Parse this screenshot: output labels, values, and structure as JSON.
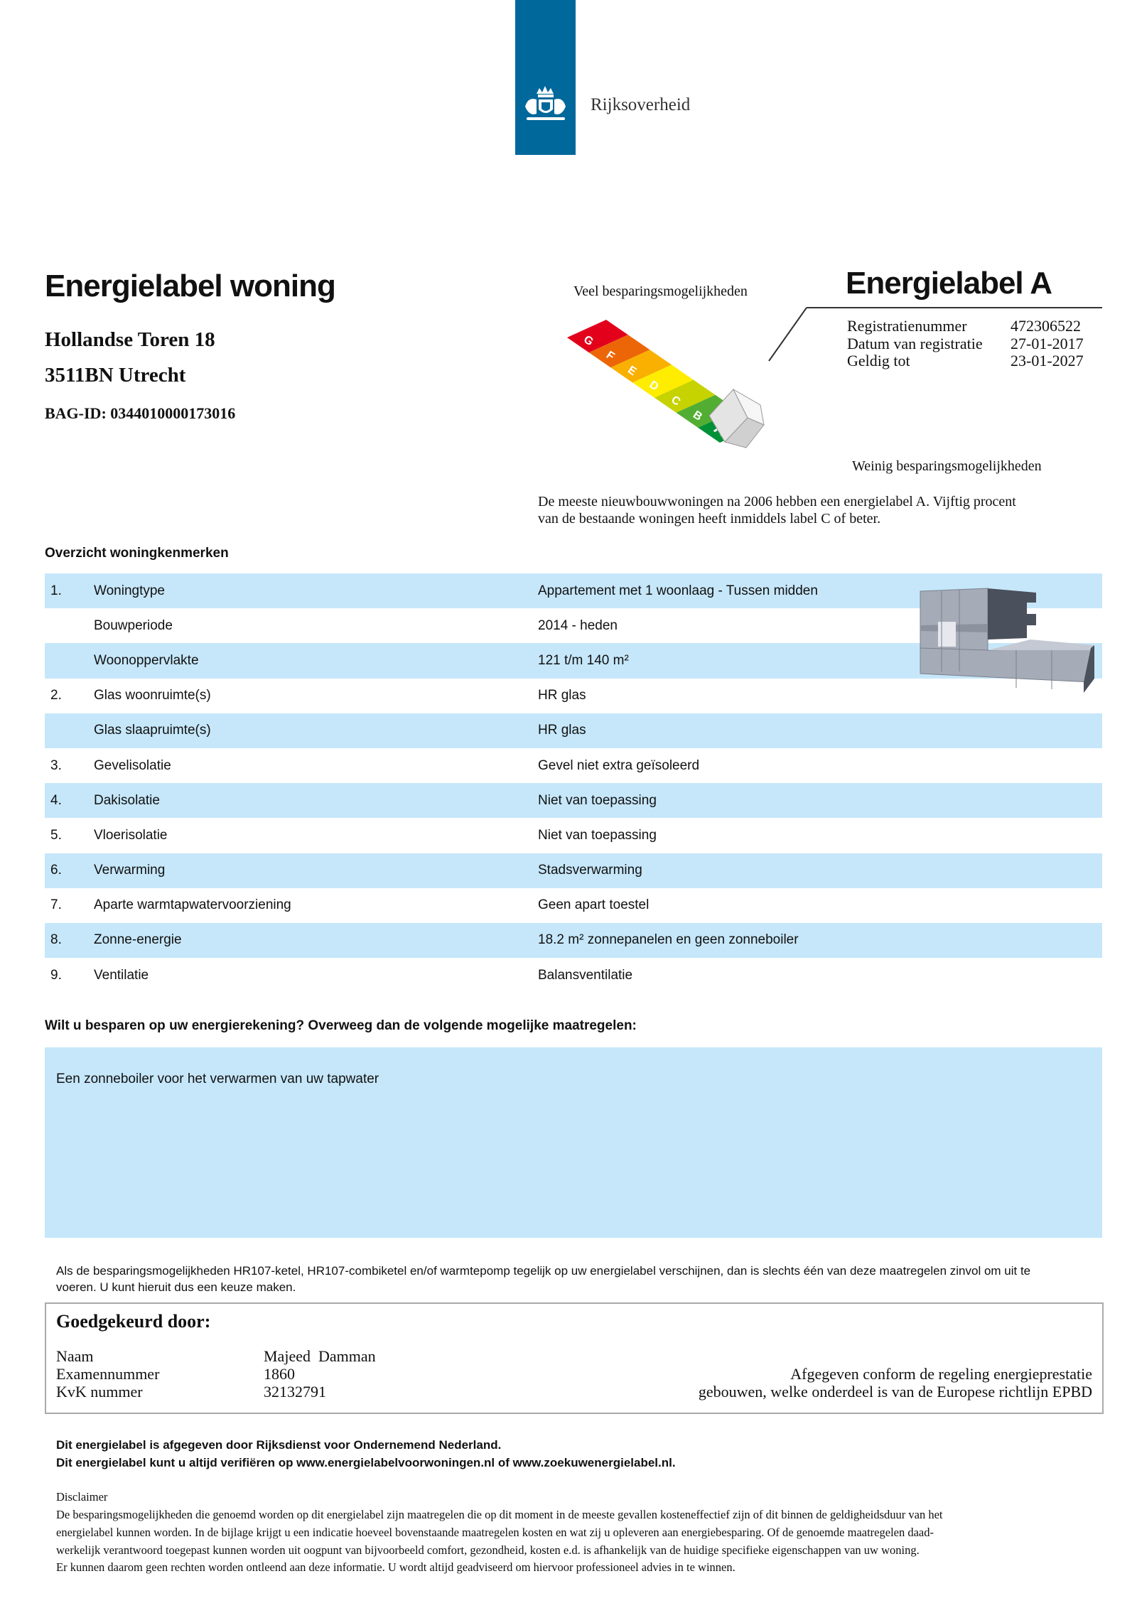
{
  "header": {
    "brand": "Rijksoverheid",
    "brand_color": "#01689b"
  },
  "left": {
    "title": "Energielabel woning",
    "street": "Hollandse Toren 18",
    "city": "3511BN Utrecht",
    "bag_id": "BAG-ID: 0344010000173016"
  },
  "label": {
    "top_caption": "Veel besparingsmogelijkheden",
    "bottom_caption": "Weinig besparingsmogelijkheden",
    "title": "Energielabel A",
    "current": "A",
    "classes": [
      {
        "letter": "G",
        "color": "#e3001b"
      },
      {
        "letter": "F",
        "color": "#ec6608"
      },
      {
        "letter": "E",
        "color": "#f9b000"
      },
      {
        "letter": "D",
        "color": "#ffed00"
      },
      {
        "letter": "C",
        "color": "#c6d300"
      },
      {
        "letter": "B",
        "color": "#52ae32"
      },
      {
        "letter": "A",
        "color": "#009036"
      }
    ],
    "info": [
      {
        "key": "Registratienummer",
        "value": "472306522"
      },
      {
        "key": "Datum van registratie",
        "value": "27-01-2017"
      },
      {
        "key": "Geldig tot",
        "value": "23-01-2027"
      }
    ],
    "note_line1": "De meeste nieuwbouwwoningen na 2006 hebben een energielabel A. Vijftig procent",
    "note_line2": "van de bestaande woningen heeft inmiddels label C of beter."
  },
  "overview": {
    "heading": "Overzicht woningkenmerken",
    "rows": [
      {
        "num": "1.",
        "key": "Woningtype",
        "value": "Appartement met 1 woonlaag - Tussen midden"
      },
      {
        "num": "",
        "key": "Bouwperiode",
        "value": "2014 - heden"
      },
      {
        "num": "",
        "key": "Woonoppervlakte",
        "value": "121 t/m 140 m²"
      },
      {
        "num": "2.",
        "key": "Glas woonruimte(s)",
        "value": "HR glas"
      },
      {
        "num": "",
        "key": "Glas slaapruimte(s)",
        "value": "HR glas"
      },
      {
        "num": "3.",
        "key": "Gevelisolatie",
        "value": "Gevel niet extra geïsoleerd"
      },
      {
        "num": "4.",
        "key": "Dakisolatie",
        "value": "Niet van toepassing"
      },
      {
        "num": "5.",
        "key": "Vloerisolatie",
        "value": "Niet van toepassing"
      },
      {
        "num": "6.",
        "key": "Verwarming",
        "value": "Stadsverwarming"
      },
      {
        "num": "7.",
        "key": "Aparte warmtapwatervoorziening",
        "value": "Geen apart toestel"
      },
      {
        "num": "8.",
        "key": "Zonne-energie",
        "value": "18.2 m² zonnepanelen en geen zonneboiler"
      },
      {
        "num": "9.",
        "key": "Ventilatie",
        "value": "Balansventilatie"
      }
    ],
    "row_color": "#c6e7fa"
  },
  "measures": {
    "question": "Wilt u besparen op uw energierekening? Overweeg dan de volgende mogelijke maatregelen:",
    "items": [
      "Een zonneboiler voor het verwarmen van uw tapwater"
    ],
    "note_line1": "Als de besparingsmogelijkheden HR107-ketel, HR107-combiketel en/of warmtepomp tegelijk op uw energielabel verschijnen, dan is slechts één van deze maatregelen zinvol om uit te",
    "note_line2": "voeren. U kunt hieruit dus een keuze maken."
  },
  "approved": {
    "heading": "Goedgekeurd door:",
    "fields": [
      {
        "key": "Naam",
        "value": "Majeed  Damman"
      },
      {
        "key": "Examennummer",
        "value": "1860"
      },
      {
        "key": "KvK nummer",
        "value": "32132791"
      }
    ],
    "conform_line1": "Afgegeven conform de regeling energieprestatie",
    "conform_line2": "gebouwen, welke onderdeel is van de Europese richtlijn EPBD"
  },
  "footer": {
    "line1": "Dit energielabel is afgegeven door Rijksdienst voor Ondernemend Nederland.",
    "line2": "Dit energielabel kunt u altijd verifiëren op www.energielabelvoorwoningen.nl of www.zoekuwenergielabel.nl.",
    "disclaimer_title": "Disclaimer",
    "disclaimer_lines": [
      "De besparingsmogelijkheden die genoemd worden op dit energielabel zijn maatregelen die op dit moment in de meeste gevallen kosteneffectief zijn of dit binnen de geldigheidsduur van het",
      "energielabel kunnen worden. In de bijlage krijgt u een indicatie hoeveel bovenstaande maatregelen kosten en wat zij u opleveren aan energiebesparing. Of de genoemde maatregelen daad-",
      "werkelijk verantwoord toegepast kunnen worden uit oogpunt van bijvoorbeeld comfort, gezondheid, kosten e.d. is afhankelijk van de huidige specifieke eigenschappen van uw woning.",
      "Er kunnen daarom geen rechten worden ontleend aan deze informatie. U wordt altijd geadviseerd om hiervoor professioneel advies in te winnen."
    ]
  }
}
